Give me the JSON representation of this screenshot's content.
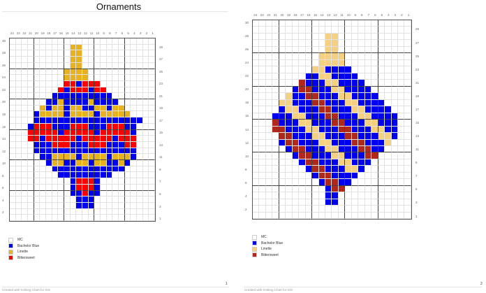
{
  "document": {
    "title": "Ornaments"
  },
  "palette": {
    "MC": "#ffffff",
    "B": "#0000ee",
    "Y1": "#e8b21e",
    "R1": "#ff0000",
    "Y2": "#f4d080",
    "R2": "#b0271c"
  },
  "pages": [
    {
      "page_number": "1",
      "col_labels": [
        "24",
        "23",
        "22",
        "21",
        "20",
        "19",
        "18",
        "17",
        "16",
        "15",
        "14",
        "13",
        "12",
        "11",
        "10",
        "9",
        "8",
        "7",
        "6",
        "5",
        "4",
        "3",
        "2",
        "1"
      ],
      "left_row_labels": [
        "30",
        "28",
        "26",
        "24",
        "22",
        "20",
        "18",
        "16",
        "14",
        "12",
        "10",
        "8",
        "6",
        "4",
        "2"
      ],
      "right_row_labels": [
        "29",
        "27",
        "25",
        "23",
        "21",
        "19",
        "17",
        "15",
        "13",
        "11",
        "9",
        "7",
        "5",
        "3",
        "1"
      ],
      "legend": [
        {
          "label": "MC",
          "color": "#ffffff"
        },
        {
          "label": "Bachelor Blue",
          "color": "#0000ee"
        },
        {
          "label": "Linette",
          "color": "#e8b21e"
        },
        {
          "label": "Bittersweet",
          "color": "#ff0000"
        }
      ],
      "footer": "Created with Knitting Chart for iOS",
      "rows": [
        "........................",
        "..........YY............",
        "..........YY............",
        "..........YY............",
        "..........YY............",
        ".........YYYY...........",
        ".........YYYY...........",
        ".........RRBRRR.........",
        "........RBRRRBRR........",
        ".......BBBBBBBBBB.......",
        "......BBYBBBBYBBBB......",
        ".....YBYYBYYBBYYBYY.....",
        "....BYYYYBYYYYBYYYYY....",
        "....BBBBBBBBBBBBBBBBBB..",
        "...BRRRBBBRRRBBBRRRBB...",
        "...RRRRRBRRRRRBRRRRRB...",
        "...RRBRRRRRBRRRRRBRRR...",
        "....BBBRRRBBBRRRBBBRR...",
        "....BBBBBBBBBBBBBBBBB...",
        ".....BBYYYYBYYYYBYYYB...",
        "......BYYBBYYBYYBBYB....",
        ".......BBBBBBBBBBBB.....",
        "........BBBBBBBBB.......",
        "..........BRRRB.........",
        "..........BRRRB.........",
        "..........BBRBB.........",
        "...........BBB..........",
        "...........BBB..........",
        "........................",
        "........................"
      ],
      "chart_colors": {
        "B": "#0000ee",
        "Y": "#e8b21e",
        "R": "#ff0000"
      }
    },
    {
      "page_number": "2",
      "col_labels": [
        "24",
        "23",
        "22",
        "21",
        "20",
        "19",
        "18",
        "17",
        "16",
        "15",
        "14",
        "13",
        "12",
        "11",
        "10",
        "9",
        "8",
        "7",
        "6",
        "5",
        "4",
        "3",
        "2",
        "1"
      ],
      "left_row_labels": [
        "30",
        "28",
        "26",
        "24",
        "22",
        "20",
        "18",
        "16",
        "14",
        "12",
        "10",
        "8",
        "6",
        "4",
        "2"
      ],
      "right_row_labels": [
        "29",
        "27",
        "25",
        "23",
        "21",
        "19",
        "17",
        "15",
        "13",
        "11",
        "9",
        "7",
        "5",
        "3",
        "1"
      ],
      "legend": [
        {
          "label": "MC",
          "color": "#ffffff"
        },
        {
          "label": "Bachelor Blue",
          "color": "#0000ee"
        },
        {
          "label": "Linette",
          "color": "#f4d080"
        },
        {
          "label": "Bittersweet",
          "color": "#b0271c"
        }
      ],
      "footer": "Created with Knitting Chart for iOS",
      "rows": [
        "........................",
        "........................",
        "...........YY...........",
        "...........YY...........",
        "...........YY...........",
        "..........YYYY..........",
        "..........YYYY..........",
        ".........YYBBBB.........",
        "........BBYYBBBB........",
        ".......RBBBYYBBBB.......",
        "......BRRBBBYYBBBB......",
        ".....YBBRRBBBYYBBBB.....",
        "....YYBBBRRBBBYYBBBB....",
        "....BYYBBBRRBBBYYBBBB...",
        "...BBBYYBBBRRBBBYYBBBB..",
        "...RBBBYYBBBRRBBBYYBBB..",
        "...RRBBBYYBBBRRBBBYYBB..",
        "....RRBBBYYBBBRRBBBYYB..",
        "....BRRBBBYYBBBRRBBBY...",
        ".....BRRBBBYYBBBRRBB....",
        "......BRRBBBYYBBBRR.....",
        ".......BRRBBBYYBBB......",
        "........BRRBBBYYB.......",
        ".........BRRBBBB........",
        "..........BRRBB.........",
        "...........BRR..........",
        "...........BB...........",
        "...........BB...........",
        "........................",
        "........................"
      ],
      "chart_colors": {
        "B": "#0000ee",
        "Y": "#f4d080",
        "R": "#b0271c"
      }
    }
  ]
}
